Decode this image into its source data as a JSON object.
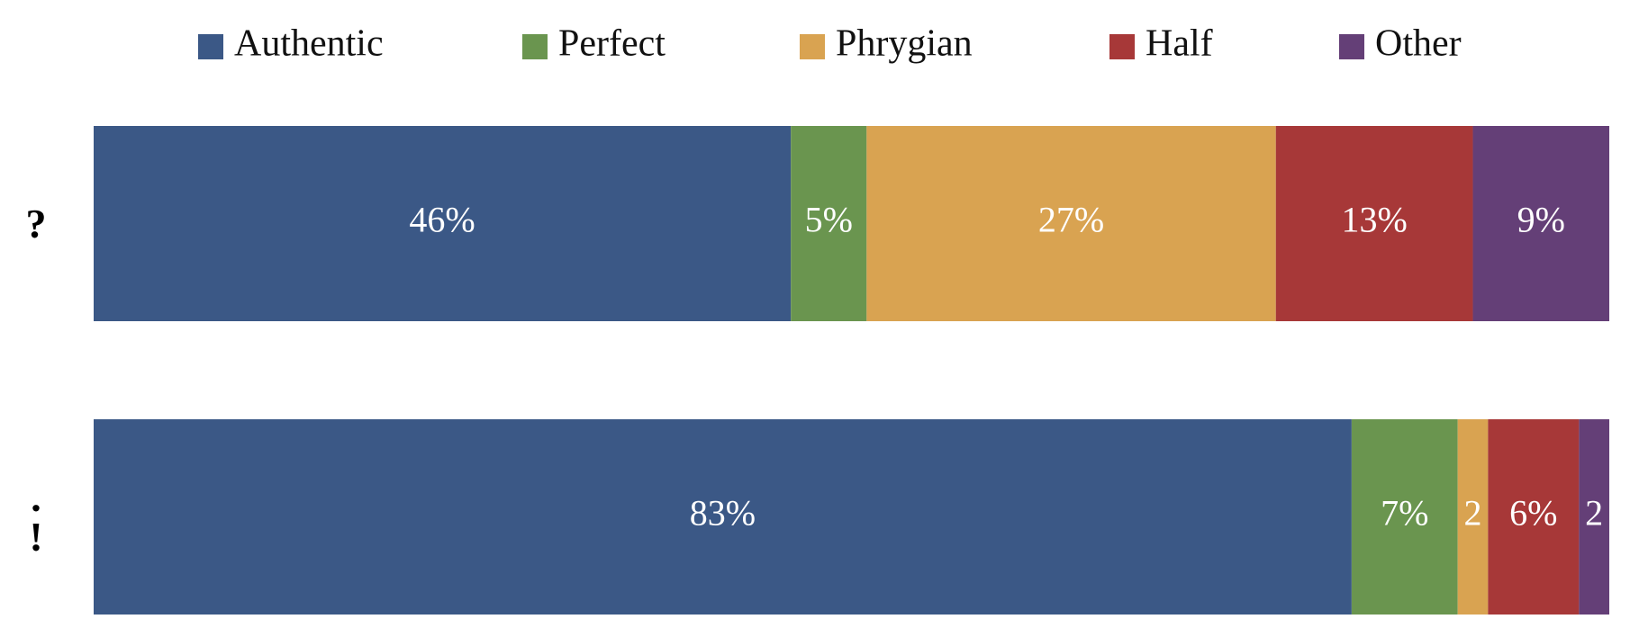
{
  "chart_data": {
    "type": "stacked-bar-horizontal",
    "categories": [
      "?",
      ".\n!"
    ],
    "xlim": [
      0,
      100
    ],
    "legend": "top",
    "series": [
      {
        "name": "Authentic",
        "color": "#3b5886",
        "values": [
          46,
          83
        ],
        "value_labels": [
          "46%",
          "83%"
        ]
      },
      {
        "name": "Perfect",
        "color": "#6a954f",
        "values": [
          5,
          7
        ],
        "value_labels": [
          "5%",
          "7%"
        ]
      },
      {
        "name": "Phrygian",
        "color": "#d9a351",
        "values": [
          27,
          2
        ],
        "value_labels": [
          "27%",
          "2"
        ]
      },
      {
        "name": "Half",
        "color": "#a73838",
        "values": [
          13,
          6
        ],
        "value_labels": [
          "13%",
          "6%"
        ]
      },
      {
        "name": "Other",
        "color": "#643f77",
        "values": [
          9,
          2
        ],
        "value_labels": [
          "9%",
          "2"
        ]
      }
    ]
  }
}
